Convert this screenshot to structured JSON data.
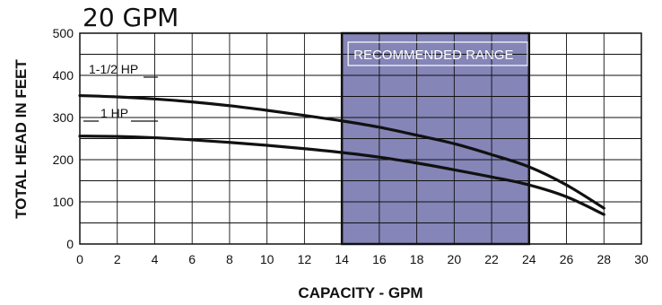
{
  "chart_data": {
    "type": "line",
    "title": "20 GPM",
    "xlabel": "CAPACITY - GPM",
    "ylabel": "TOTAL HEAD IN FEET",
    "xlim": [
      0,
      30
    ],
    "ylim": [
      0,
      500
    ],
    "x_ticks": [
      "0",
      "2",
      "4",
      "6",
      "8",
      "10",
      "12",
      "14",
      "16",
      "18",
      "20",
      "22",
      "24",
      "26",
      "28",
      "30"
    ],
    "y_ticks": [
      "0",
      "100",
      "200",
      "300",
      "400",
      "500"
    ],
    "grid": true,
    "shaded_range": {
      "label": "RECOMMENDED RANGE",
      "x": [
        14,
        24
      ],
      "color": "#8585b8"
    },
    "series": [
      {
        "name": "1-1/2 HP",
        "x": [
          0,
          2,
          4,
          6,
          8,
          10,
          12,
          14,
          16,
          18,
          20,
          22,
          24,
          26,
          28
        ],
        "y": [
          352,
          349,
          344,
          337,
          328,
          317,
          305,
          292,
          277,
          258,
          238,
          212,
          183,
          140,
          85
        ]
      },
      {
        "name": "1 HP",
        "x": [
          0,
          2,
          4,
          6,
          8,
          10,
          12,
          14,
          16,
          18,
          20,
          22,
          24,
          26,
          28
        ],
        "y": [
          256,
          255,
          252,
          247,
          241,
          234,
          226,
          217,
          206,
          192,
          176,
          159,
          140,
          112,
          70
        ]
      }
    ]
  }
}
